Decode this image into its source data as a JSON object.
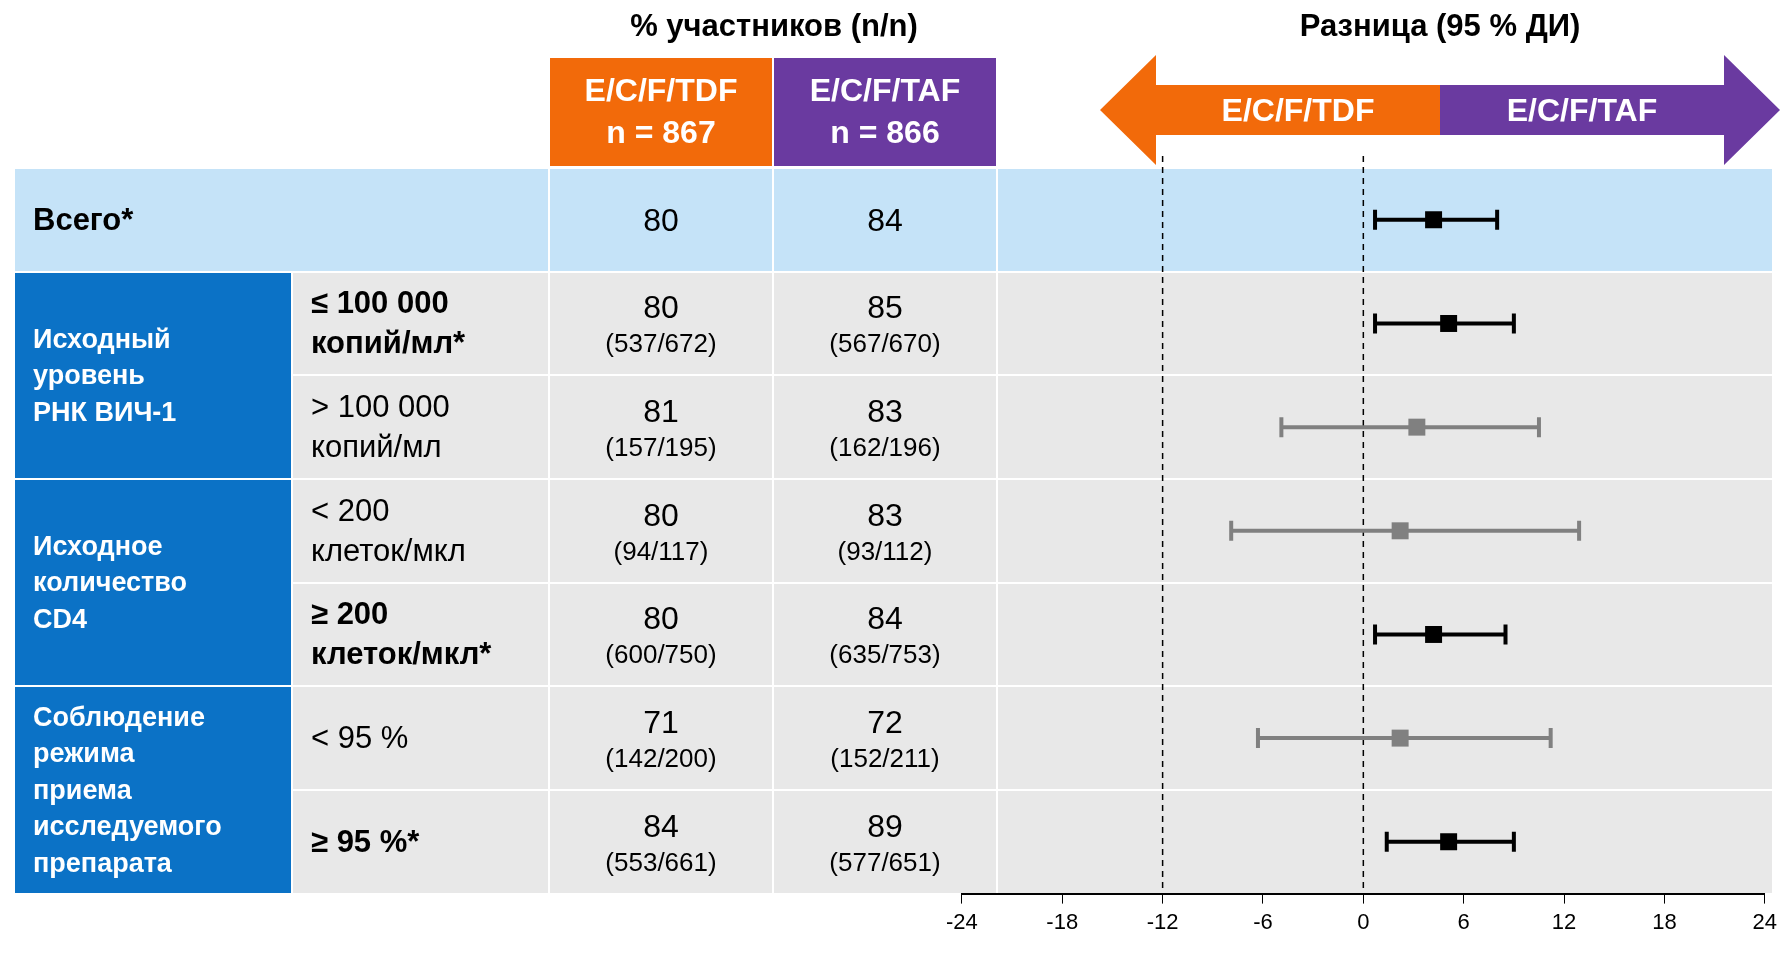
{
  "chart_data": [
    {
      "type": "other",
      "title": "% участников (n/n)",
      "categories": [
        "Всего*",
        "≤ 100 000\nкопий/мл*",
        "> 100 000\nкопий/мл",
        "< 200\nклеток/мкл",
        "≥ 200\nклеток/мкл*",
        "< 95 %",
        "≥ 95 %*"
      ],
      "annotations": [
        "Исходный\nуровень\nРНК ВИЧ-1",
        "Исходное\nколичество\nCD4",
        "Соблюдение\nрежима\nприема\nисследуемого\nпрепарата",
        "E/C/F/TDF\nn = 867",
        "E/C/F/TAF\nn = 866"
      ],
      "series": [
        {
          "colors": [
            "#c5e3f8",
            "#e8e8e8",
            "#e8e8e8",
            "#e8e8e8",
            "#e8e8e8",
            "#e8e8e8",
            "#e8e8e8"
          ],
          "values": [
            80,
            80,
            81,
            80,
            80,
            71,
            84
          ],
          "value_labels": [
            "80",
            "80\n(537/672)",
            "81\n(157/195)",
            "80\n(94/117)",
            "80\n(600/750)",
            "71\n(142/200)",
            "84\n(553/661)"
          ]
        },
        {
          "colors": [
            "#c5e3f8",
            "#e8e8e8",
            "#e8e8e8",
            "#e8e8e8",
            "#e8e8e8",
            "#e8e8e8",
            "#e8e8e8"
          ],
          "values": [
            84,
            85,
            83,
            83,
            84,
            72,
            89
          ],
          "value_labels": [
            "84",
            "85\n(567/670)",
            "83\n(162/196)",
            "83\n(93/112)",
            "84\n(635/753)",
            "72\n(152/211)",
            "89\n(577/651)"
          ]
        }
      ]
    },
    {
      "type": "scatter",
      "title": "Разница (95 % ДИ)",
      "orientation": "horizontal",
      "categories": [
        null,
        null,
        null,
        null,
        null,
        null,
        null
      ],
      "values": [
        4.2,
        5.1,
        3.2,
        2.2,
        4.2,
        2.2,
        5.1
      ],
      "errors": [
        [
          0.7,
          8.0
        ],
        [
          0.7,
          9.0
        ],
        [
          -4.9,
          10.5
        ],
        [
          -7.9,
          12.9
        ],
        [
          0.7,
          8.5
        ],
        [
          -6.3,
          11.2
        ],
        [
          1.4,
          9.0
        ]
      ],
      "colors": [
        "#000000",
        "#000000",
        "#808080",
        "#808080",
        "#000000",
        "#808080",
        "#000000"
      ],
      "marker": "square",
      "xlim": [
        -24,
        24
      ],
      "xticks": [
        -24,
        -18,
        -12,
        -6,
        0,
        6,
        12,
        18,
        24
      ],
      "ref_lines": [
        {
          "axis": "x",
          "value": -12,
          "line_style": "dashed",
          "color": "#000000"
        },
        {
          "axis": "x",
          "value": 0,
          "line_style": "dashed",
          "color": "#000000"
        }
      ],
      "annotations": [
        "E/C/F/TDF",
        "E/C/F/TAF"
      ]
    }
  ]
}
